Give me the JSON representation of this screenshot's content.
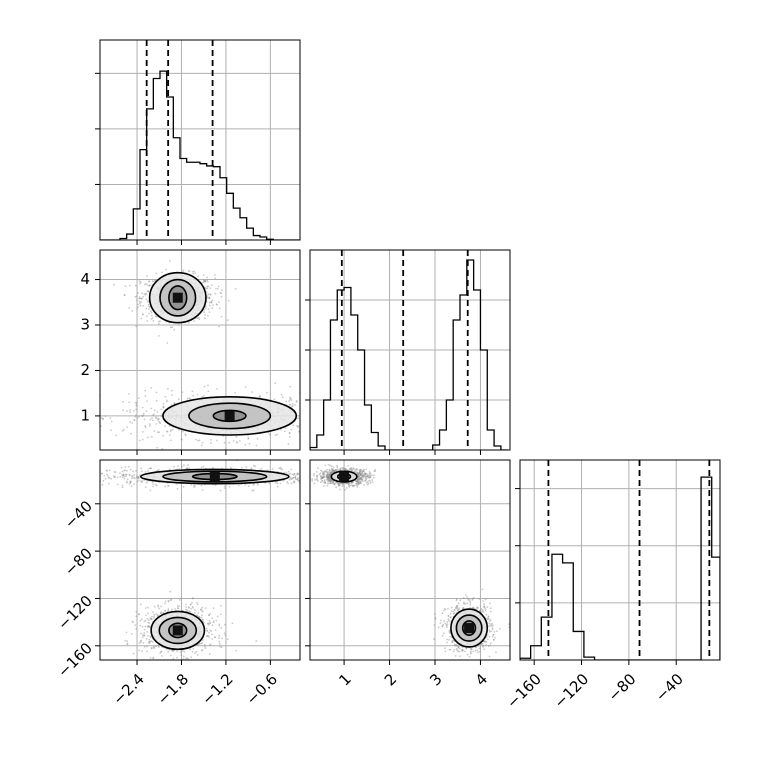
{
  "colors": {
    "line": "#000000",
    "grid": "#b0b0b0",
    "scatter": "#8c8c8c"
  },
  "chart_data": [
    {
      "type": "histogram",
      "panel": "p00",
      "xlim": [
        -2.9,
        -0.2
      ],
      "ylim": [
        0,
        2.7
      ],
      "grid": true,
      "bins": {
        "edges": [
          -2.9,
          -2.81,
          -2.72,
          -2.63,
          -2.54,
          -2.45,
          -2.36,
          -2.27,
          -2.18,
          -2.09,
          -2.0,
          -1.91,
          -1.82,
          -1.73,
          -1.64,
          -1.55,
          -1.46,
          -1.37,
          -1.28,
          -1.19,
          -1.1,
          -1.01,
          -0.92,
          -0.83,
          -0.74,
          -0.65,
          -0.56,
          -0.47,
          -0.38,
          -0.29,
          -0.2
        ],
        "counts": [
          0,
          0,
          0,
          0.02,
          0.08,
          0.42,
          1.22,
          1.77,
          2.18,
          2.28,
          1.93,
          1.38,
          1.1,
          1.05,
          1.05,
          1.03,
          1.0,
          0.99,
          0.84,
          0.63,
          0.43,
          0.3,
          0.16,
          0.06,
          0.04,
          0.01,
          0,
          0,
          0,
          0
        ]
      },
      "quantile_lines": [
        -2.27,
        -1.98,
        -1.38
      ],
      "x_ticks": [
        -2.4,
        -1.8,
        -1.2,
        -0.6
      ],
      "y_ticks": [
        0.75,
        1.5,
        2.25
      ],
      "xlabel": "",
      "ylabel": ""
    },
    {
      "type": "scatter_contour",
      "panel": "p10",
      "xlim": [
        -2.9,
        -0.2
      ],
      "ylim": [
        0.25,
        4.65
      ],
      "grid": true,
      "clusters": [
        {
          "center": [
            -1.85,
            3.6
          ],
          "spread": [
            0.45,
            0.45
          ],
          "levels": [
            [
              0.12,
              0.26
            ],
            [
              0.24,
              0.4
            ],
            [
              0.38,
              0.55
            ]
          ]
        },
        {
          "center": [
            -1.15,
            1.0
          ],
          "spread": [
            1.3,
            0.45
          ],
          "levels": [
            [
              0.22,
              0.12
            ],
            [
              0.55,
              0.28
            ],
            [
              0.9,
              0.42
            ]
          ]
        }
      ],
      "x_ticks": [
        -2.4,
        -1.8,
        -1.2,
        -0.6
      ],
      "y_ticks": [
        1,
        2,
        3,
        4
      ],
      "y_tick_labels": [
        "1",
        "2",
        "3",
        "4"
      ],
      "xlabel": "",
      "ylabel": ""
    },
    {
      "type": "scatter_contour",
      "panel": "p20",
      "xlim": [
        -2.9,
        -0.2
      ],
      "ylim": [
        -172,
        -3
      ],
      "grid": true,
      "clusters": [
        {
          "center": [
            -1.35,
            -17
          ],
          "spread": [
            1.5,
            7
          ],
          "levels": [
            [
              0.3,
              2.5
            ],
            [
              0.7,
              4.5
            ],
            [
              1.0,
              6
            ]
          ]
        },
        {
          "center": [
            -1.85,
            -147
          ],
          "spread": [
            0.45,
            18
          ],
          "levels": [
            [
              0.12,
              6
            ],
            [
              0.25,
              11
            ],
            [
              0.36,
              16
            ]
          ]
        }
      ],
      "x_ticks": [
        -2.4,
        -1.8,
        -1.2,
        -0.6
      ],
      "x_tick_labels": [
        "−2.4",
        "−1.8",
        "−1.2",
        "−0.6"
      ],
      "y_ticks": [
        -40,
        -80,
        -120,
        -160
      ],
      "y_tick_labels": [
        "−40",
        "−80",
        "−120",
        "−160"
      ],
      "xlabel": "",
      "ylabel": ""
    },
    {
      "type": "histogram",
      "panel": "p11",
      "xlim": [
        0.25,
        4.65
      ],
      "ylim": [
        0,
        4.0
      ],
      "grid": true,
      "bins": {
        "edges": [
          0.25,
          0.4,
          0.55,
          0.7,
          0.85,
          1.0,
          1.15,
          1.3,
          1.45,
          1.6,
          1.75,
          1.9,
          2.05,
          2.2,
          2.35,
          2.5,
          2.65,
          2.8,
          2.95,
          3.1,
          3.25,
          3.4,
          3.55,
          3.7,
          3.85,
          4.0,
          4.15,
          4.3,
          4.45,
          4.6
        ],
        "counts": [
          0.05,
          0.3,
          1.0,
          2.6,
          3.2,
          3.25,
          2.7,
          2.0,
          0.9,
          0.35,
          0.08,
          0,
          0,
          0,
          0,
          0,
          0,
          0,
          0.1,
          0.4,
          1.0,
          2.6,
          3.1,
          3.8,
          3.2,
          2.0,
          0.4,
          0.08,
          0
        ]
      },
      "quantile_lines": [
        0.95,
        2.3,
        3.72
      ],
      "x_ticks": [
        1,
        2,
        3,
        4
      ],
      "y_ticks": [
        1,
        2,
        3
      ],
      "xlabel": "",
      "ylabel": ""
    },
    {
      "type": "scatter_contour",
      "panel": "p21",
      "xlim": [
        0.25,
        4.65
      ],
      "ylim": [
        -172,
        -3
      ],
      "grid": true,
      "clusters": [
        {
          "center": [
            1.0,
            -17
          ],
          "spread": [
            0.5,
            6
          ],
          "levels": [
            [
              0.14,
              2.5
            ],
            [
              0.28,
              4.5
            ]
          ]
        },
        {
          "center": [
            3.75,
            -145
          ],
          "spread": [
            0.45,
            18
          ],
          "levels": [
            [
              0.14,
              6
            ],
            [
              0.28,
              11
            ],
            [
              0.4,
              16
            ]
          ]
        }
      ],
      "x_ticks": [
        1,
        2,
        3,
        4
      ],
      "x_tick_labels": [
        "1",
        "2",
        "3",
        "4"
      ],
      "y_ticks": [
        -40,
        -80,
        -120,
        -160
      ],
      "xlabel": "",
      "ylabel": ""
    },
    {
      "type": "histogram",
      "panel": "p22",
      "xlim": [
        -172,
        -3
      ],
      "ylim": [
        0,
        3.5
      ],
      "grid": true,
      "bins": {
        "edges": [
          -172,
          -163,
          -154,
          -145,
          -136,
          -127,
          -118,
          -109,
          -100,
          -91,
          -82,
          -73,
          -64,
          -55,
          -46,
          -37,
          -28,
          -19,
          -10,
          -3
        ],
        "counts": [
          0.03,
          0.25,
          0.75,
          1.85,
          1.7,
          0.5,
          0.05,
          0,
          0,
          0,
          0,
          0,
          0,
          0,
          0,
          0,
          0,
          3.2,
          1.8
        ]
      },
      "quantile_lines": [
        -148,
        -71,
        -12
      ],
      "x_ticks": [
        -160,
        -120,
        -80,
        -40
      ],
      "x_tick_labels": [
        "−160",
        "−120",
        "−80",
        "−40"
      ],
      "y_ticks": [
        1,
        2,
        3
      ],
      "xlabel": "",
      "ylabel": ""
    }
  ]
}
